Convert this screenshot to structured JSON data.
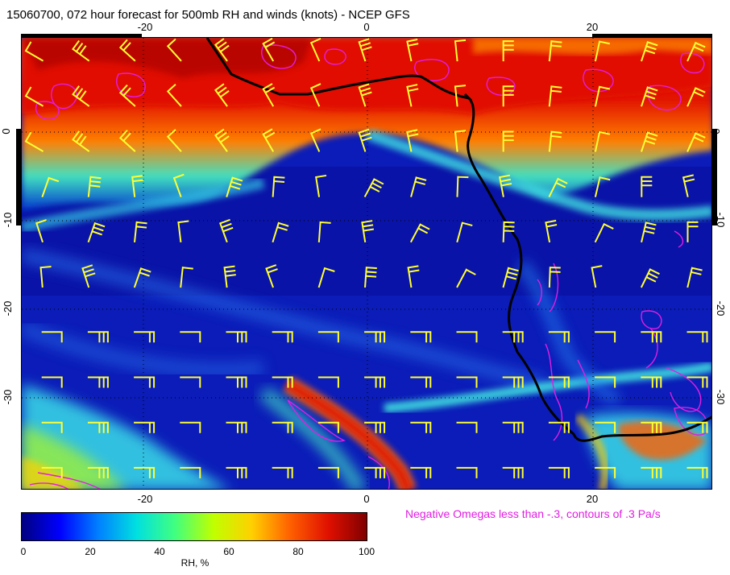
{
  "title": "15060700, 072 hour forecast for 500mb RH and winds (knots) - NCEP GFS",
  "axes": {
    "top_ticks": [
      "-20",
      "0",
      "20"
    ],
    "bottom_ticks": [
      "-20",
      "0",
      "20"
    ],
    "left_ticks": [
      "0",
      "-10",
      "-20",
      "-30"
    ],
    "right_ticks": [
      "0",
      "-10",
      "-20",
      "-30"
    ]
  },
  "colorbar": {
    "ticks": [
      "0",
      "20",
      "40",
      "60",
      "80",
      "100"
    ],
    "label": "RH, %",
    "colors": [
      "#000080",
      "#0000ff",
      "#0080ff",
      "#00e0e0",
      "#40ff80",
      "#c0ff00",
      "#ffd000",
      "#ff6000",
      "#e01000",
      "#800000"
    ]
  },
  "note": "Negative Omegas less than -.3, contours of .3 Pa/s",
  "colors": {
    "barb": "#ffff33",
    "omega_contour": "#e21de3",
    "coastline": "#000000"
  },
  "map_content": {
    "variable": "RH",
    "unit": "%",
    "wind_units": "knots",
    "omega_threshold": "-.3"
  }
}
